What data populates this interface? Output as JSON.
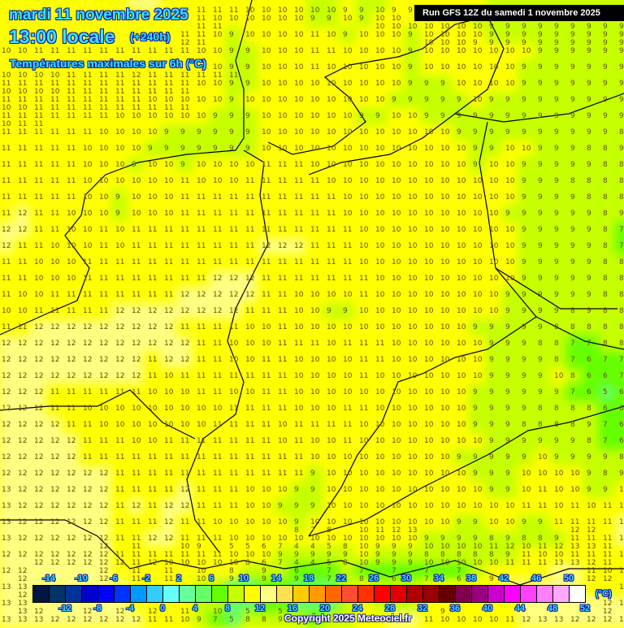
{
  "header": {
    "date": "mardi 11 novembre 2025",
    "time": "13:00 locale",
    "lead": "(+240h)",
    "parameter": "Températures maximales sur 6h (°C)",
    "run": "Run GFS 12Z du samedi 1 novembre 2025"
  },
  "legend": {
    "unit": "(°C)",
    "top_labels": [
      "-14",
      "-10",
      "-6",
      "-2",
      "2",
      "6",
      "10",
      "14",
      "18",
      "22",
      "26",
      "30",
      "34",
      "38",
      "42",
      "46",
      "50"
    ],
    "bottom_labels": [
      "-12",
      "-8",
      "-4",
      "0",
      "4",
      "8",
      "12",
      "16",
      "20",
      "24",
      "28",
      "32",
      "36",
      "40",
      "44",
      "48",
      "52"
    ],
    "min": -16,
    "step": 2,
    "colors": [
      "#00153f",
      "#003366",
      "#003399",
      "#0000cc",
      "#0000ff",
      "#0033ff",
      "#0099ff",
      "#33ccff",
      "#66ffff",
      "#66ff99",
      "#66ff66",
      "#66ff00",
      "#c6ff00",
      "#ffff00",
      "#ffff80",
      "#ffe050",
      "#ffcc00",
      "#ff9900",
      "#ff6600",
      "#ff4d33",
      "#ff3300",
      "#ff0000",
      "#e00000",
      "#b00000",
      "#990000",
      "#660000",
      "#800050",
      "#990080",
      "#cc00cc",
      "#ff00ff",
      "#ff40ff",
      "#ff80ff",
      "#ffaaff",
      "#ffffff"
    ]
  },
  "grid_values": [
    "10 10 10 10 11 11 11 11 12 12 11 11 11 10 10 10 10 10 10 9 9 10 9 9 10 10 10 10 10 10 9 9 9 9 9 9 9 9 9",
    "10 10 10 10 11 11 11 11 11 11 11 11 11 10 10 10 10 10 10 9 9 10 9 10 10 10 10 10 10 9 9 9 9 9 9 9 9 9 9",
    "10 10 11 11 11 11 11 11 11 11 11 11 11 10 9 10 10 10 10 11 10 9 10 10 10 9 10 10 10 10 9 9 9 9 9 9 9 9 9",
    "10 10 11 11 11 11 11 11 11 11 11 11 10 10 9 9 10 10 10 11 11 10 10 10 10 9 10 10 10 10 10 10 10 9 9 9 9 9 9",
    "10 11 11 11 11 11 11 11 11 11 11 11 11 10 9 9 10 10 10 11 10 10 10 10 10 9 10 10 10 10 10 10 9 9 9 9 9 9 9",
    "11 11 11 11 11 11 11 11 11 11 11 11 10 10 9 9 10 10 10 10 10 10 10 10 10 9 9 9 10 10 10 10 9 9 9 9 9 9 9",
    "11 11 11 11 11 11 11 11 11 10 10 10 10 10 9 10 10 10 10 10 10 10 10 10 9 9 9 9 9 10 9 9 9 9 9 9 9 9 9",
    "11 11 11 11 11 11 11 10 10 10 10 10 10 9 9 9 10 10 10 10 10 10 9 9 10 10 9 9 9 9 9 9 9 9 9 9 9 9 9",
    "11 11 11 11 11 11 10 10 10 10 9 9 9 9 9 9 10 10 10 10 10 10 10 10 10 10 10 10 9 9 9 9 9 9 9 9 9 9 8",
    "11 11 11 11 11 10 10 10 10 9 9 9 9 9 9 9 10 10 10 10 10 10 10 10 10 10 10 10 10 9 9 10 10 9 9 9 8 8 9",
    "11 11 11 11 11 10 10 10 9 10 10 9 10 10 10 10 11 11 11 10 10 10 10 10 10 10 10 10 10 9 10 10 9 9 9 9 9 8 8",
    "11 11 11 11 11 10 10 10 10 10 10 11 10 10 10 11 11 11 11 11 10 10 10 10 10 10 10 10 10 10 10 10 9 9 9 8 8 8 8",
    "11 11 11 11 11 10 10 9 10 10 10 11 11 11 11 11 11 11 11 11 11 10 10 10 10 10 10 10 10 10 10 10 9 9 9 9 8 8 8",
    "11 12 11 11 10 10 10 9 10 10 10 11 11 11 11 11 11 11 11 11 11 10 10 10 10 10 10 10 10 10 10 9 9 9 9 9 9 8 9",
    "12 12 11 11 10 10 11 10 11 11 11 11 11 11 11 11 11 11 11 11 11 11 10 10 10 10 10 10 10 10 10 10 9 9 9 9 9 8 7",
    "12 11 11 10 10 10 11 10 11 11 11 11 11 11 11 11 12 12 12 11 11 11 10 10 10 10 10 10 10 10 10 10 9 9 9 9 9 8 7",
    "11 11 10 10 10 11 11 11 11 11 11 11 11 11 11 11 11 11 11 11 11 11 10 10 10 10 10 10 10 10 10 10 9 9 9 9 9 8 8",
    "11 11 10 10 10 11 11 11 11 11 11 11 11 12 12 12 11 11 11 11 11 11 11 10 10 10 10 10 10 10 10 10 9 9 9 9 9 8 8",
    "11 10 10 11 11 11 11 11 11 11 11 12 12 12 12 12 11 11 10 10 10 10 11 10 10 10 10 10 10 10 10 9 9 9 9 9 9 8 8",
    "10 10 11 11 11 11 11 12 12 12 12 12 12 12 12 11 11 11 10 10 9 9 10 10 10 10 10 10 10 10 10 9 9 9 9 8 9 8 8",
    "11 11 12 12 12 12 12 12 12 12 12 11 11 11 11 10 10 11 10 10 10 10 10 10 10 10 10 10 10 9 9 9 9 9 8 8 8 8 8",
    "12 12 12 12 12 12 12 12 12 12 12 12 11 11 10 10 10 11 11 11 10 11 11 11 10 10 10 10 10 10 9 9 9 8 8 7 7 8 8",
    "12 12 12 12 12 12 12 12 12 11 12 12 11 11 10 10 11 11 10 10 10 10 11 11 10 10 10 10 10 10 9 9 9 9 8 7 6 7 7",
    "12 12 12 12 12 12 12 12 12 11 10 11 11 11 11 11 11 11 10 10 10 10 11 10 10 10 10 10 10 10 9 9 9 9 10 8 6 6 7",
    "12 12 12 11 11 11 11 11 11 10 10 10 11 11 10 10 11 11 10 10 10 10 10 10 10 10 10 10 10 9 9 9 9 9 9 7 6 5 6",
    "12 12 12 11 11 10 10 10 10 10 10 10 10 10 11 11 11 11 10 10 10 11 11 10 10 10 10 10 10 9 9 9 9 8 8 8 8 6 6",
    "12 12 12 12 11 11 10 10 10 10 10 10 10 11 11 11 11 10 11 11 11 11 10 10 10 10 10 10 10 9 9 9 8 8 8 8 9 7 6",
    "12 12 12 12 12 11 11 11 10 10 11 11 11 11 11 11 11 10 11 10 10 11 10 10 10 10 10 10 10 10 9 9 9 9 9 9 8 7 6",
    "12 12 12 12 12 11 11 11 11 11 11 11 11 11 11 11 11 11 11 10 10 10 10 10 10 10 10 10 9 9 9 9 9 10 9 9 9 9 8",
    "12 12 12 12 12 12 12 11 11 11 11 11 11 11 11 11 11 11 11 9 10 10 10 10 10 10 10 10 10 9 9 9 10 10 10 10 9 8 9",
    "13 12 12 12 12 12 12 11 11 11 11 12 11 11 11 10 10 10 9 9 10 10 10 10 10 10 10 10 10 10 9 9 10 11 10 10 9 9 10",
    "13 12 12 12 12 12 12 11 12 11 12 12 11 11 11 10 10 9 9 9 10 10 10 10 10 10 10 10 10 10 10 10 11 11 10 11 10 11 11",
    "13 12 12 12 12 12 12 11 11 11 12 11 11 10 10 10 10 10 9 10 10 10 10 10 10 10 10 10 9 9 10 10 9 9 11 11 11 11 12",
    "13 12 12 12 12 12 12 11 11 12 12 11 11 11 10 10 10 10 10 10 10 10 10 10 10 10 9 9 9 9 8 9 8 8 9 11 11 11 12",
    "12 12 12 12 12 12 12 11 11 11 11 11 11 11 10 10 10 9 9 9 9 9 10 9 9 9 8 8 8 8 8 9 11 10 10 11 11 11 11",
    "12 12 12 12 12 12 12 11 11 11 11 10 10 10 10 9 9 9 6 7 7 8 7 6 7 7 7 6 7 9 10 11 11 11 12 12 11 10 11",
    "13 13 12 12 12 12 12 12 11 11 10 10 9 8 5 5 6 7 4 4 5 8 10 9 9 9 10 10 10 10 11 12 13 13 12 12 11 11 11",
    "13 13 13 12 12 12 12 12 11 10 10 10 9 8 5 5 6 7 4 4 5 8 10 9 9 9 10 10 10 10 10 11 12 13 13 12 12 12 12",
    "13 13 13 12 12 12 12 12 12 11 11 10 9 7 5 8 8 9 8 7 8 9 10 11 12 13 11 10 10 10 10 11 12 13 13 12 12 12 12"
  ],
  "footer": {
    "copyright": "Copyright 2025 Meteociel.fr"
  }
}
